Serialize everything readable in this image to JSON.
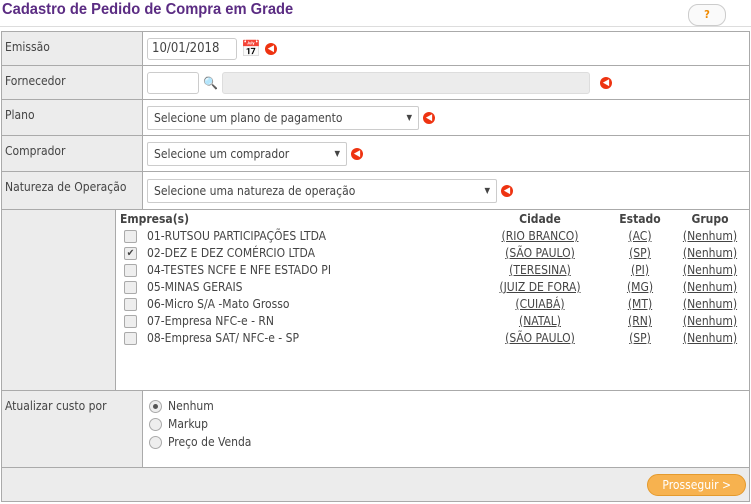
{
  "title": "Cadastro de Pedido de Compra em Grade",
  "help_label": "?",
  "fields": {
    "emissao": {
      "label": "Emissão",
      "value": "10/01/2018"
    },
    "fornecedor": {
      "label": "Fornecedor",
      "value": ""
    },
    "plano": {
      "label": "Plano",
      "selected": "Selecione um plano de pagamento"
    },
    "comprador": {
      "label": "Comprador",
      "selected": "Selecione um comprador"
    },
    "natureza": {
      "label": "Natureza de Operação",
      "selected": "Selecione uma natureza de operação"
    }
  },
  "empresas": {
    "headers": [
      "Empresa(s)",
      "Cidade",
      "Estado",
      "Grupo"
    ],
    "rows": [
      {
        "name": "01-RUTSOU PARTICIPAÇÕES LTDA",
        "cidade": "(RIO BRANCO)",
        "estado": "(AC)",
        "grupo": "(Nenhum)",
        "checked": false
      },
      {
        "name": "02-DEZ E DEZ COMÉRCIO LTDA",
        "cidade": "(SÃO PAULO)",
        "estado": "(SP)",
        "grupo": "(Nenhum)",
        "checked": true
      },
      {
        "name": "04-TESTES NCFE E NFE ESTADO PI",
        "cidade": "(TERESINA)",
        "estado": "(PI)",
        "grupo": "(Nenhum)",
        "checked": false
      },
      {
        "name": "05-MINAS GERAIS",
        "cidade": "(JUIZ DE FORA)",
        "estado": "(MG)",
        "grupo": "(Nenhum)",
        "checked": false
      },
      {
        "name": "06-Micro S/A -Mato Grosso",
        "cidade": "(CUIABÁ)",
        "estado": "(MT)",
        "grupo": "(Nenhum)",
        "checked": false
      },
      {
        "name": "07-Empresa NFC-e - RN",
        "cidade": "(NATAL)",
        "estado": "(RN)",
        "grupo": "(Nenhum)",
        "checked": false
      },
      {
        "name": "08-Empresa SAT/ NFC-e - SP",
        "cidade": "(SÃO PAULO)",
        "estado": "(SP)",
        "grupo": "(Nenhum)",
        "checked": false
      }
    ]
  },
  "atualizar": {
    "label": "Atualizar custo por",
    "options": [
      "Nenhum",
      "Markup",
      "Preço de Venda"
    ],
    "selected": "Nenhum"
  },
  "prosseguir_label": "Prosseguir >"
}
